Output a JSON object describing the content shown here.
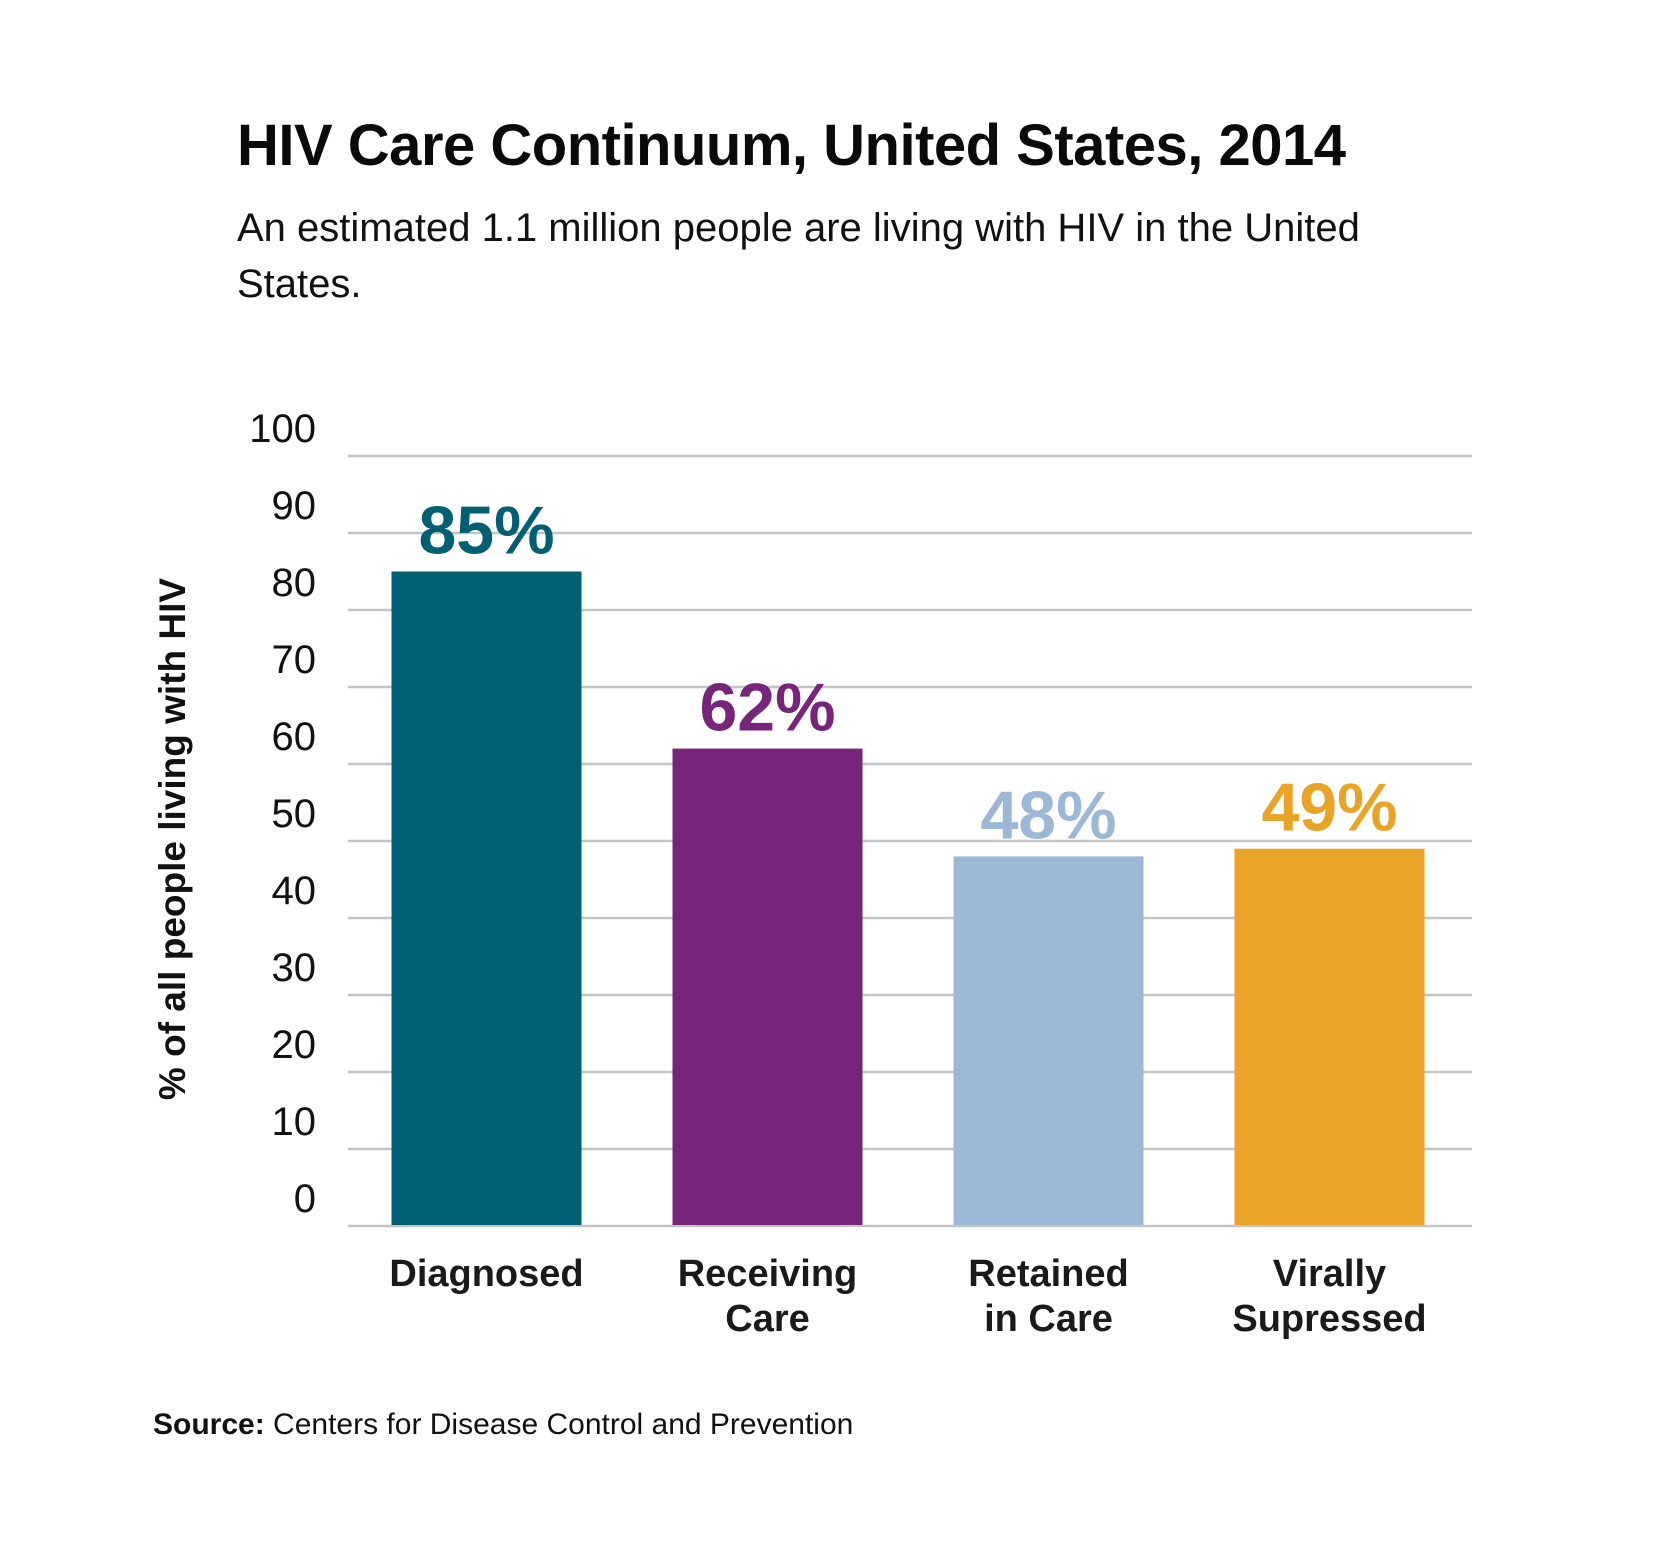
{
  "header": {
    "title": "HIV Care Continuum, United States, 2014",
    "subtitle": "An estimated 1.1 million people are living with HIV in the United States."
  },
  "footer": {
    "source_label": "Source:",
    "source_text": "Centers for Disease Control and Prevention"
  },
  "chart_data": {
    "type": "bar",
    "title": "HIV Care Continuum, United States, 2014",
    "subtitle": "An estimated 1.1 million people are living with HIV in the United States.",
    "xlabel": "",
    "ylabel": "% of all people living with HIV",
    "categories": [
      [
        "Diagnosed"
      ],
      [
        "Receiving",
        "Care"
      ],
      [
        "Retained",
        "in Care"
      ],
      [
        "Virally",
        "Supressed"
      ]
    ],
    "values": [
      85,
      62,
      48,
      49
    ],
    "data_labels": [
      "85%",
      "62%",
      "48%",
      "49%"
    ],
    "colors": [
      "#005f72",
      "#77257b",
      "#9db8d6",
      "#e9a327"
    ],
    "ylim": [
      0,
      100
    ],
    "yticks": [
      0,
      10,
      20,
      30,
      40,
      50,
      60,
      70,
      80,
      90,
      100
    ],
    "grid": true,
    "gridline_color": "#c4c4c4",
    "legend": "none"
  }
}
